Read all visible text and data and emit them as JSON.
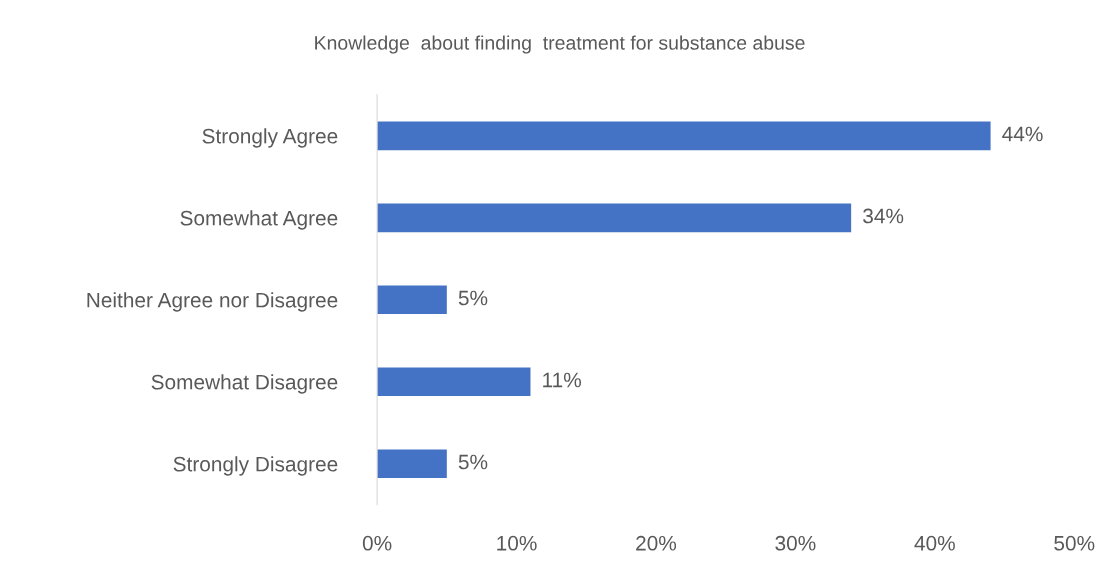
{
  "chart_data": {
    "type": "bar",
    "orientation": "horizontal",
    "title": "Knowledge  about finding  treatment for substance abuse",
    "categories": [
      "Strongly Agree",
      "Somewhat Agree",
      "Neither Agree nor Disagree",
      "Somewhat Disagree",
      "Strongly Disagree"
    ],
    "values": [
      44,
      34,
      5,
      11,
      5
    ],
    "value_labels": [
      "44%",
      "34%",
      "5%",
      "11%",
      "5%"
    ],
    "color": "#4472c4",
    "xlim": [
      0,
      50
    ],
    "xticks": [
      {
        "value": 0,
        "label": "0%"
      },
      {
        "value": 10,
        "label": "10%"
      },
      {
        "value": 20,
        "label": "20%"
      },
      {
        "value": 30,
        "label": "30%"
      },
      {
        "value": 40,
        "label": "40%"
      },
      {
        "value": 50,
        "label": "50%"
      }
    ],
    "grid": false,
    "legend": false
  }
}
